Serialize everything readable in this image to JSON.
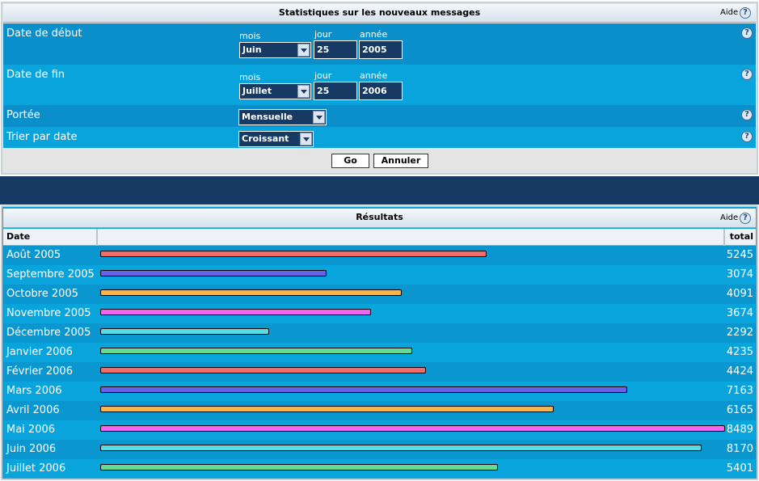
{
  "form": {
    "title": "Statistiques sur les nouveaux messages",
    "help": "Aide",
    "help_icon": "?",
    "fields": [
      {
        "label": "Date de début",
        "month_label": "mois",
        "day_label": "jour",
        "year_label": "année",
        "month": "Juin",
        "day": "25",
        "year": "2005"
      },
      {
        "label": "Date de fin",
        "month_label": "mois",
        "day_label": "jour",
        "year_label": "année",
        "month": "Juillet",
        "day": "25",
        "year": "2006"
      },
      {
        "label": "Portée",
        "value": "Mensuelle"
      },
      {
        "label": "Trier par date",
        "value": "Croissant"
      }
    ],
    "buttons": [
      "Go",
      "Annuler"
    ]
  },
  "results": {
    "title": "Résultats",
    "help": "Aide",
    "help_icon": "?",
    "columns": [
      "Date",
      "total"
    ],
    "rows": [
      {
        "date": "Août 2005",
        "total": 5245,
        "color": "#f26a6a"
      },
      {
        "date": "Septembre 2005",
        "total": 3074,
        "color": "#6464e8"
      },
      {
        "date": "Octobre 2005",
        "total": 4091,
        "color": "#f8b448"
      },
      {
        "date": "Novembre 2005",
        "total": 3674,
        "color": "#f064f0"
      },
      {
        "date": "Décembre 2005",
        "total": 2292,
        "color": "#58dce4"
      },
      {
        "date": "Janvier 2006",
        "total": 4235,
        "color": "#64dc94"
      },
      {
        "date": "Février 2006",
        "total": 4424,
        "color": "#f26a6a"
      },
      {
        "date": "Mars 2006",
        "total": 7163,
        "color": "#6464e8"
      },
      {
        "date": "Avril 2006",
        "total": 6165,
        "color": "#f8b448"
      },
      {
        "date": "Mai 2006",
        "total": 8489,
        "color": "#f064f0"
      },
      {
        "date": "Juin 2006",
        "total": 8170,
        "color": "#58dce4"
      },
      {
        "date": "Juillet 2006",
        "total": 5401,
        "color": "#64dc94"
      }
    ]
  }
}
